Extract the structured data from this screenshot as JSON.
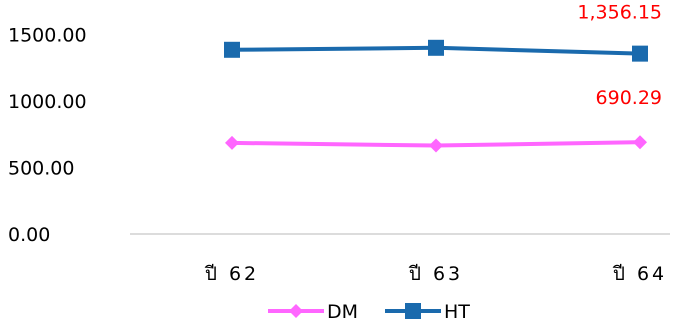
{
  "chart_data": {
    "type": "line",
    "categories": [
      "ปี 62",
      "ปี 63",
      "ปี 64"
    ],
    "series": [
      {
        "name": "DM",
        "values": [
          685,
          665,
          690.29
        ],
        "color": "#ff66ff",
        "marker": "diamond"
      },
      {
        "name": "HT",
        "values": [
          1385,
          1400,
          1356.15
        ],
        "color": "#1a6aad",
        "marker": "square"
      }
    ],
    "y_ticks": [
      "0.00",
      "500.00",
      "1000.00",
      "1500.00"
    ],
    "ylim": [
      0,
      1700
    ],
    "data_labels": [
      {
        "text": "1,356.15",
        "series": "HT",
        "index": 2,
        "color": "#ff0000"
      },
      {
        "text": "690.29",
        "series": "DM",
        "index": 2,
        "color": "#ff0000"
      }
    ],
    "grid": false,
    "legend_position": "bottom"
  }
}
